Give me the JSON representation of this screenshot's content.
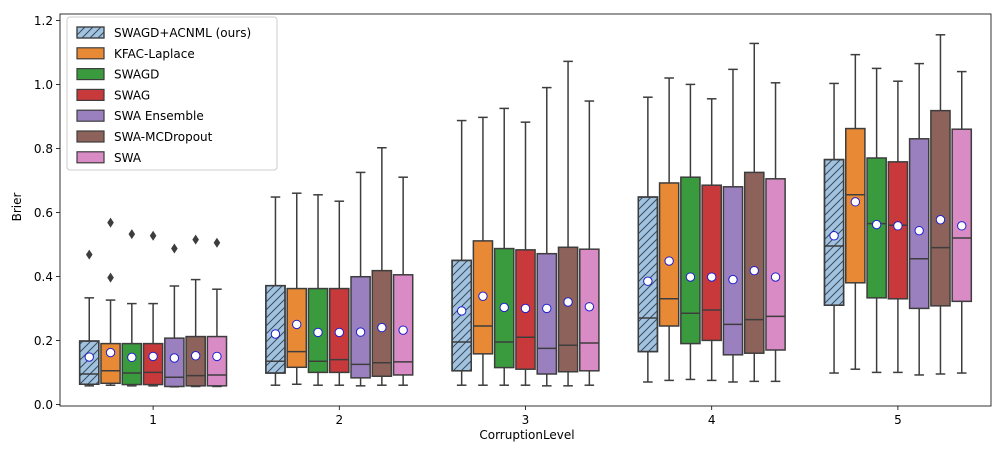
{
  "chart_data": {
    "type": "boxplot",
    "xlabel": "CorruptionLevel",
    "ylabel": "Brier",
    "ylim": [
      -0.005,
      1.22
    ],
    "yticks": [
      0.0,
      0.2,
      0.4,
      0.6,
      0.8,
      1.0,
      1.2
    ],
    "ytick_labels": [
      "0.0",
      "0.2",
      "0.4",
      "0.6",
      "0.8",
      "1.0",
      "1.2"
    ],
    "categories": [
      "1",
      "2",
      "3",
      "4",
      "5"
    ],
    "legend_position": "top-left",
    "series": [
      {
        "name": "SWAGD+ACNML (ours)",
        "color": "#a1c3df",
        "hatch": true,
        "boxes": [
          {
            "whislo": 0.058,
            "q1": 0.063,
            "med": 0.095,
            "q3": 0.198,
            "whishi": 0.333,
            "mean": 0.148,
            "fliers": [
              0.468
            ]
          },
          {
            "whislo": 0.06,
            "q1": 0.098,
            "med": 0.135,
            "q3": 0.371,
            "whishi": 0.648,
            "mean": 0.22,
            "fliers": []
          },
          {
            "whislo": 0.06,
            "q1": 0.105,
            "med": 0.195,
            "q3": 0.45,
            "whishi": 0.887,
            "mean": 0.292,
            "fliers": []
          },
          {
            "whislo": 0.07,
            "q1": 0.165,
            "med": 0.27,
            "q3": 0.648,
            "whishi": 0.96,
            "mean": 0.385,
            "fliers": []
          },
          {
            "whislo": 0.098,
            "q1": 0.31,
            "med": 0.495,
            "q3": 0.765,
            "whishi": 1.003,
            "mean": 0.527,
            "fliers": []
          }
        ]
      },
      {
        "name": "KFAC-Laplace",
        "color": "#e88a35",
        "hatch": false,
        "boxes": [
          {
            "whislo": 0.06,
            "q1": 0.066,
            "med": 0.105,
            "q3": 0.19,
            "whishi": 0.326,
            "mean": 0.162,
            "fliers": [
              0.396,
              0.568
            ]
          },
          {
            "whislo": 0.063,
            "q1": 0.116,
            "med": 0.165,
            "q3": 0.362,
            "whishi": 0.66,
            "mean": 0.25,
            "fliers": []
          },
          {
            "whislo": 0.06,
            "q1": 0.158,
            "med": 0.245,
            "q3": 0.511,
            "whishi": 0.897,
            "mean": 0.338,
            "fliers": []
          },
          {
            "whislo": 0.075,
            "q1": 0.245,
            "med": 0.33,
            "q3": 0.692,
            "whishi": 1.02,
            "mean": 0.448,
            "fliers": []
          },
          {
            "whislo": 0.11,
            "q1": 0.38,
            "med": 0.655,
            "q3": 0.862,
            "whishi": 1.093,
            "mean": 0.633,
            "fliers": []
          }
        ]
      },
      {
        "name": "SWAGD",
        "color": "#3a9a3e",
        "hatch": false,
        "boxes": [
          {
            "whislo": 0.058,
            "q1": 0.062,
            "med": 0.098,
            "q3": 0.19,
            "whishi": 0.315,
            "mean": 0.147,
            "fliers": [
              0.532
            ]
          },
          {
            "whislo": 0.06,
            "q1": 0.1,
            "med": 0.135,
            "q3": 0.362,
            "whishi": 0.655,
            "mean": 0.225,
            "fliers": []
          },
          {
            "whislo": 0.06,
            "q1": 0.115,
            "med": 0.195,
            "q3": 0.487,
            "whishi": 0.925,
            "mean": 0.303,
            "fliers": []
          },
          {
            "whislo": 0.078,
            "q1": 0.19,
            "med": 0.285,
            "q3": 0.71,
            "whishi": 1.0,
            "mean": 0.398,
            "fliers": []
          },
          {
            "whislo": 0.1,
            "q1": 0.333,
            "med": 0.565,
            "q3": 0.77,
            "whishi": 1.05,
            "mean": 0.562,
            "fliers": []
          }
        ]
      },
      {
        "name": "SWAG",
        "color": "#c8393c",
        "hatch": false,
        "boxes": [
          {
            "whislo": 0.058,
            "q1": 0.062,
            "med": 0.1,
            "q3": 0.19,
            "whishi": 0.315,
            "mean": 0.15,
            "fliers": [
              0.527
            ]
          },
          {
            "whislo": 0.06,
            "q1": 0.1,
            "med": 0.14,
            "q3": 0.362,
            "whishi": 0.635,
            "mean": 0.225,
            "fliers": []
          },
          {
            "whislo": 0.06,
            "q1": 0.11,
            "med": 0.21,
            "q3": 0.483,
            "whishi": 0.882,
            "mean": 0.3,
            "fliers": []
          },
          {
            "whislo": 0.075,
            "q1": 0.2,
            "med": 0.295,
            "q3": 0.685,
            "whishi": 0.955,
            "mean": 0.398,
            "fliers": []
          },
          {
            "whislo": 0.1,
            "q1": 0.33,
            "med": 0.56,
            "q3": 0.758,
            "whishi": 1.01,
            "mean": 0.558,
            "fliers": []
          }
        ]
      },
      {
        "name": "SWA Ensemble",
        "color": "#9b80bf",
        "hatch": false,
        "boxes": [
          {
            "whislo": 0.055,
            "q1": 0.056,
            "med": 0.085,
            "q3": 0.207,
            "whishi": 0.37,
            "mean": 0.145,
            "fliers": [
              0.487
            ]
          },
          {
            "whislo": 0.058,
            "q1": 0.083,
            "med": 0.125,
            "q3": 0.399,
            "whishi": 0.725,
            "mean": 0.226,
            "fliers": []
          },
          {
            "whislo": 0.058,
            "q1": 0.095,
            "med": 0.175,
            "q3": 0.471,
            "whishi": 0.99,
            "mean": 0.3,
            "fliers": []
          },
          {
            "whislo": 0.07,
            "q1": 0.155,
            "med": 0.25,
            "q3": 0.68,
            "whishi": 1.047,
            "mean": 0.39,
            "fliers": []
          },
          {
            "whislo": 0.092,
            "q1": 0.3,
            "med": 0.455,
            "q3": 0.83,
            "whishi": 1.065,
            "mean": 0.543,
            "fliers": []
          }
        ]
      },
      {
        "name": "SWA-MCDropout",
        "color": "#8d625a",
        "hatch": false,
        "boxes": [
          {
            "whislo": 0.056,
            "q1": 0.058,
            "med": 0.09,
            "q3": 0.212,
            "whishi": 0.39,
            "mean": 0.152,
            "fliers": [
              0.515
            ]
          },
          {
            "whislo": 0.06,
            "q1": 0.088,
            "med": 0.13,
            "q3": 0.418,
            "whishi": 0.802,
            "mean": 0.24,
            "fliers": []
          },
          {
            "whislo": 0.058,
            "q1": 0.102,
            "med": 0.185,
            "q3": 0.491,
            "whishi": 1.072,
            "mean": 0.32,
            "fliers": []
          },
          {
            "whislo": 0.072,
            "q1": 0.16,
            "med": 0.265,
            "q3": 0.725,
            "whishi": 1.128,
            "mean": 0.418,
            "fliers": []
          },
          {
            "whislo": 0.095,
            "q1": 0.308,
            "med": 0.49,
            "q3": 0.918,
            "whishi": 1.155,
            "mean": 0.577,
            "fliers": []
          }
        ]
      },
      {
        "name": "SWA",
        "color": "#d98bc6",
        "hatch": false,
        "boxes": [
          {
            "whislo": 0.056,
            "q1": 0.058,
            "med": 0.092,
            "q3": 0.212,
            "whishi": 0.36,
            "mean": 0.15,
            "fliers": [
              0.505
            ]
          },
          {
            "whislo": 0.06,
            "q1": 0.092,
            "med": 0.133,
            "q3": 0.405,
            "whishi": 0.71,
            "mean": 0.232,
            "fliers": []
          },
          {
            "whislo": 0.06,
            "q1": 0.105,
            "med": 0.192,
            "q3": 0.485,
            "whishi": 0.948,
            "mean": 0.305,
            "fliers": []
          },
          {
            "whislo": 0.072,
            "q1": 0.17,
            "med": 0.275,
            "q3": 0.705,
            "whishi": 1.005,
            "mean": 0.398,
            "fliers": []
          },
          {
            "whislo": 0.098,
            "q1": 0.322,
            "med": 0.52,
            "q3": 0.86,
            "whishi": 1.04,
            "mean": 0.558,
            "fliers": []
          }
        ]
      }
    ]
  }
}
